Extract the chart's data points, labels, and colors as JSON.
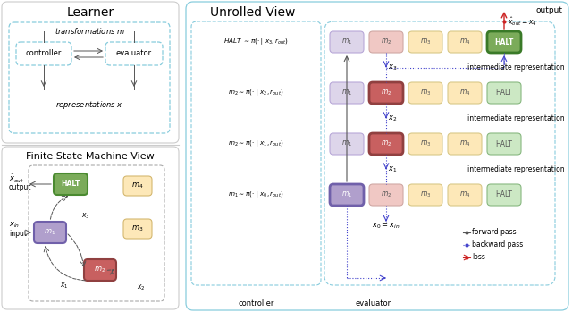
{
  "title_learner": "Learner",
  "title_fsm": "Finite State Machine View",
  "title_unrolled": "Unrolled View",
  "bg_color": "#ffffff",
  "m1_color_purple": "#b09fcc",
  "m2_color_red": "#c86060",
  "halt_color_green": "#7bab5a",
  "m1_pale": "#ddd5ea",
  "m2_pale": "#f0c8c4",
  "m3_pale": "#fde8b8",
  "m4_pale": "#fde8b8",
  "halt_pale": "#cce8c4",
  "m3_fsm": "#f5d080",
  "m4_fsm": "#f5d080",
  "outer_border": "#cccccc",
  "dashed_blue": "#88ccdd",
  "arrow_forward": "#555555",
  "arrow_backward": "#4444cc",
  "arrow_loss": "#cc2222"
}
